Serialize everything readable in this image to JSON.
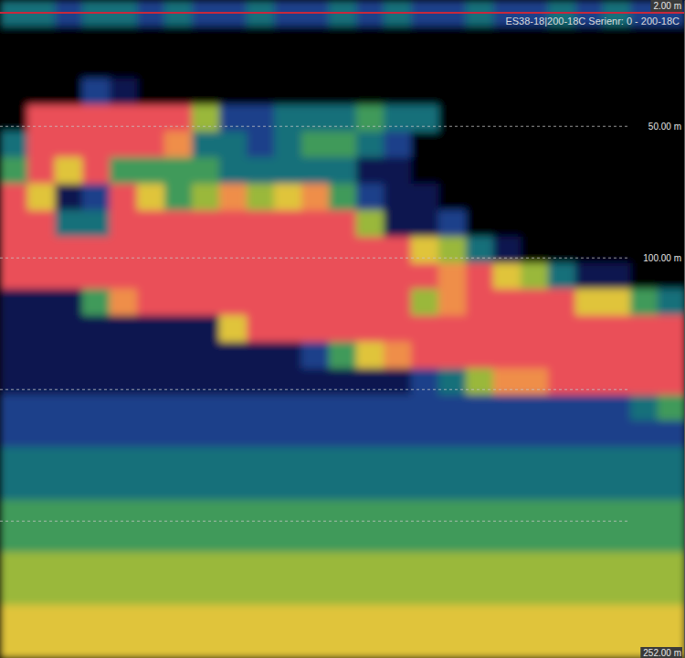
{
  "chart_data": {
    "type": "heatmap",
    "title": "ES38-18|200-18C Serienr: 0 - 200-18C",
    "ylim": [
      2,
      252
    ],
    "yticks": [
      {
        "value": 2,
        "label": "2.00 m"
      },
      {
        "value": 50,
        "label": "50.00 m"
      },
      {
        "value": 100,
        "label": "100.00 m"
      },
      {
        "value": 150,
        "label": null
      },
      {
        "value": 200,
        "label": null
      },
      {
        "value": 252,
        "label": "252.00 m"
      }
    ],
    "grid": true,
    "tick_labels": "y",
    "zlim": [
      -86,
      -50
    ],
    "y_bins": [
      2,
      12,
      22,
      32,
      42,
      52,
      62,
      72,
      82,
      92,
      102,
      112,
      122,
      132,
      142,
      152,
      162,
      172,
      182,
      192,
      202,
      212,
      222,
      232,
      242,
      252
    ],
    "cells": [
      [
        -72,
        -90,
        -90,
        -90,
        -84,
        -71,
        -68,
        -50,
        -50,
        -50,
        -52,
        -82,
        -82,
        -81,
        -80,
        -77,
        -75,
        -73,
        -71,
        -69,
        -67,
        -66,
        -64,
        -62,
        -61
      ],
      [
        -74,
        -90,
        -90,
        -90,
        -52,
        -50,
        -51,
        -60,
        -50,
        -50,
        -51,
        -80,
        -82,
        -81,
        -80,
        -77,
        -75,
        -73,
        -71,
        -69,
        -67,
        -66,
        -64,
        -62,
        -61
      ],
      [
        -76,
        -90,
        -90,
        -85,
        -50,
        -50,
        -59,
        -80,
        -72,
        -50,
        -50,
        -79,
        -82,
        -81,
        -80,
        -77,
        -75,
        -73,
        -71,
        -69,
        -67,
        -66,
        -64,
        -62,
        -61
      ],
      [
        -74,
        -90,
        -90,
        -78,
        -50,
        -50,
        -52,
        -76,
        -74,
        -50,
        -50,
        -70,
        -82,
        -81,
        -80,
        -77,
        -75,
        -73,
        -71,
        -69,
        -67,
        -66,
        -64,
        -62,
        -61
      ],
      [
        -73,
        -90,
        -90,
        -80,
        -50,
        -52,
        -67,
        -52,
        -50,
        -50,
        -50,
        -56,
        -82,
        -81,
        -80,
        -77,
        -75,
        -73,
        -71,
        -69,
        -67,
        -66,
        -64,
        -62,
        -61
      ],
      [
        -75,
        -90,
        -90,
        -84,
        -50,
        -53,
        -68,
        -62,
        -50,
        -50,
        -50,
        -52,
        -80,
        -81,
        -80,
        -77,
        -75,
        -73,
        -71,
        -69,
        -67,
        -66,
        -64,
        -62,
        -61
      ],
      [
        -74,
        -90,
        -90,
        -90,
        -52,
        -58,
        -70,
        -68,
        -50,
        -50,
        -50,
        -54,
        -81,
        -81,
        -80,
        -77,
        -75,
        -73,
        -71,
        -69,
        -67,
        -66,
        -64,
        -62,
        -61
      ],
      [
        -76,
        -90,
        -90,
        -90,
        -66,
        -71,
        -70,
        -66,
        -51,
        -50,
        -50,
        -50,
        -79,
        -81,
        -80,
        -77,
        -75,
        -73,
        -71,
        -69,
        -67,
        -66,
        -64,
        -62,
        -61
      ],
      [
        -75,
        -90,
        -90,
        -90,
        -76,
        -73,
        -72,
        -56,
        -50,
        -50,
        -50,
        -50,
        -62,
        -81,
        -80,
        -77,
        -75,
        -73,
        -71,
        -69,
        -67,
        -66,
        -64,
        -62,
        -61
      ],
      [
        -74,
        -90,
        -90,
        -90,
        -78,
        -76,
        -72,
        -64,
        -50,
        -50,
        -50,
        -50,
        -54,
        -82,
        -80,
        -77,
        -75,
        -73,
        -71,
        -69,
        -67,
        -66,
        -64,
        -62,
        -61
      ],
      [
        -76,
        -90,
        -90,
        -90,
        -74,
        -72,
        -72,
        -62,
        -52,
        -50,
        -50,
        -50,
        -52,
        -80,
        -80,
        -77,
        -75,
        -73,
        -71,
        -69,
        -67,
        -66,
        -64,
        -62,
        -61
      ],
      [
        -75,
        -90,
        -90,
        -90,
        -71,
        -70,
        -71,
        -57,
        -50,
        -50,
        -50,
        -50,
        -51,
        -76,
        -80,
        -77,
        -75,
        -73,
        -71,
        -69,
        -67,
        -66,
        -64,
        -62,
        -61
      ],
      [
        -74,
        -90,
        -90,
        -90,
        -72,
        -70,
        -71,
        -69,
        -52,
        -50,
        -50,
        -50,
        -50,
        -70,
        -80,
        -77,
        -75,
        -73,
        -71,
        -69,
        -67,
        -66,
        -64,
        -62,
        -61
      ],
      [
        -75,
        -90,
        -90,
        -90,
        -70,
        -72,
        -79,
        -78,
        -66,
        -51,
        -50,
        -50,
        -50,
        -60,
        -80,
        -77,
        -75,
        -73,
        -71,
        -69,
        -67,
        -66,
        -64,
        -62,
        -61
      ],
      [
        -74,
        -90,
        -90,
        -90,
        -71,
        -76,
        -81,
        -80,
        -79,
        -54,
        -50,
        -50,
        -50,
        -56,
        -79,
        -77,
        -75,
        -73,
        -71,
        -69,
        -67,
        -66,
        -64,
        -62,
        -61
      ],
      [
        -76,
        -90,
        -90,
        -90,
        -74,
        -84,
        -84,
        -82,
        -80,
        -62,
        -52,
        -66,
        -50,
        -53,
        -78,
        -77,
        -75,
        -73,
        -71,
        -69,
        -67,
        -66,
        -64,
        -62,
        -61
      ],
      [
        -75,
        -90,
        -90,
        -90,
        -90,
        -88,
        -86,
        -84,
        -78,
        -66,
        -58,
        -56,
        -50,
        -52,
        -74,
        -77,
        -75,
        -73,
        -71,
        -69,
        -67,
        -66,
        -64,
        -62,
        -61
      ],
      [
        -74,
        -90,
        -90,
        -90,
        -90,
        -90,
        -88,
        -86,
        -84,
        -74,
        -53,
        -50,
        -50,
        -51,
        -64,
        -77,
        -75,
        -73,
        -71,
        -69,
        -67,
        -66,
        -64,
        -62,
        -61
      ],
      [
        -75,
        -90,
        -90,
        -90,
        -90,
        -90,
        -90,
        -88,
        -86,
        -82,
        -62,
        -50,
        -50,
        -50,
        -58,
        -77,
        -75,
        -73,
        -71,
        -69,
        -67,
        -66,
        -64,
        -62,
        -61
      ],
      [
        -76,
        -90,
        -90,
        -90,
        -90,
        -90,
        -90,
        -90,
        -88,
        -84,
        -66,
        -51,
        -50,
        -50,
        -55,
        -77,
        -75,
        -73,
        -71,
        -69,
        -67,
        -66,
        -64,
        -62,
        -61
      ],
      [
        -74,
        -90,
        -90,
        -90,
        -90,
        -90,
        -90,
        -90,
        -90,
        -86,
        -74,
        -53,
        -50,
        -50,
        -53,
        -77,
        -75,
        -73,
        -71,
        -69,
        -67,
        -66,
        -64,
        -62,
        -61
      ],
      [
        -75,
        -90,
        -90,
        -90,
        -90,
        -90,
        -90,
        -90,
        -90,
        -88,
        -80,
        -60,
        -50,
        -50,
        -52,
        -77,
        -75,
        -73,
        -71,
        -69,
        -67,
        -66,
        -64,
        -62,
        -61
      ],
      [
        -74,
        -90,
        -90,
        -90,
        -90,
        -90,
        -90,
        -90,
        -90,
        -88,
        -82,
        -62,
        -51,
        -50,
        -51,
        -76,
        -75,
        -73,
        -71,
        -69,
        -67,
        -66,
        -64,
        -62,
        -61
      ],
      [
        -76,
        -90,
        -90,
        -90,
        -90,
        -90,
        -90,
        -90,
        -90,
        -90,
        -84,
        -68,
        -52,
        -50,
        -51,
        -74,
        -75,
        -73,
        -71,
        -69,
        -67,
        -66,
        -64,
        -62,
        -61
      ],
      [
        -75,
        -90,
        -90,
        -90,
        -90,
        -90,
        -90,
        -90,
        -90,
        -90,
        -86,
        -72,
        -54,
        -50,
        -50,
        -70,
        -75,
        -73,
        -71,
        -69,
        -67,
        -66,
        -64,
        -62,
        -61
      ]
    ]
  }
}
